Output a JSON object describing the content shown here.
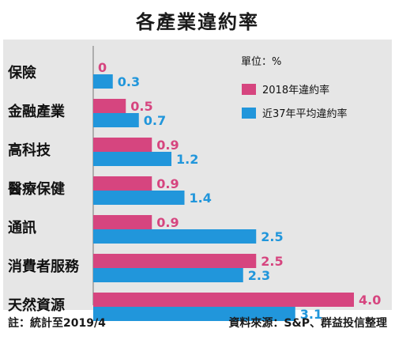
{
  "chart_data": {
    "type": "bar",
    "title": "各產業違約率",
    "unit_label": "單位：%",
    "categories": [
      "保險",
      "金融產業",
      "高科技",
      "醫療保健",
      "通訊",
      "消費者服務",
      "天然資源"
    ],
    "series": [
      {
        "name": "2018年違約率",
        "color": "#d6457f",
        "values": [
          0,
          0.5,
          0.9,
          0.9,
          0.9,
          2.5,
          4.0
        ],
        "labels": [
          "0",
          "0.5",
          "0.9",
          "0.9",
          "0.9",
          "2.5",
          "4.0"
        ]
      },
      {
        "name": "近37年平均違約率",
        "color": "#2196db",
        "values": [
          0.3,
          0.7,
          1.2,
          1.4,
          2.5,
          2.3,
          3.1
        ],
        "labels": [
          "0.3",
          "0.7",
          "1.2",
          "1.4",
          "2.5",
          "2.3",
          "3.1"
        ]
      }
    ],
    "xlim": [
      0,
      4.0
    ]
  },
  "footer": {
    "note": "註：統計至2019/4",
    "source": "資料來源：S&P、群益投信整理"
  }
}
